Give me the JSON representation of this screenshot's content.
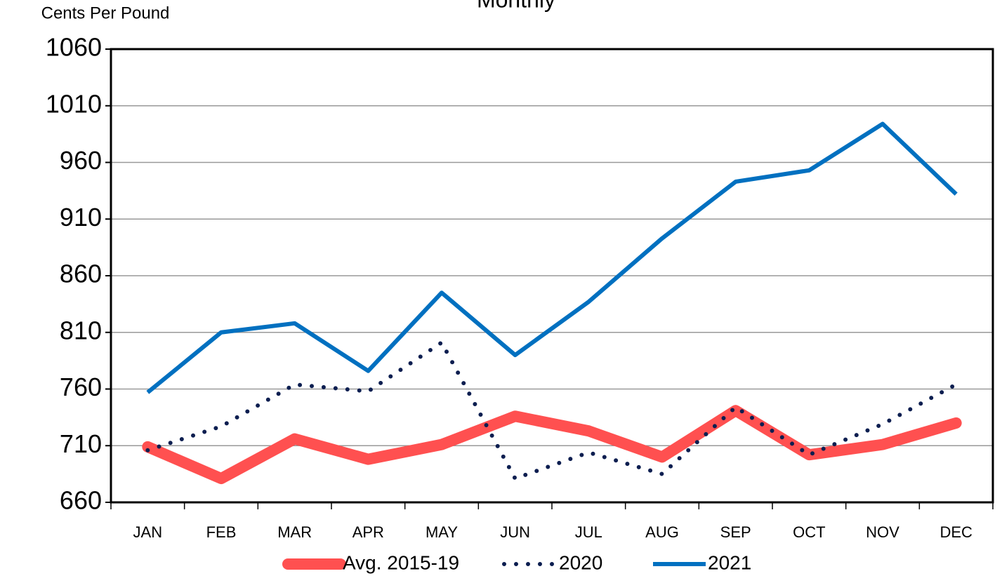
{
  "chart_data": {
    "type": "line",
    "title": "Monthly",
    "y_label": "Cents Per Pound",
    "categories": [
      "JAN",
      "FEB",
      "MAR",
      "APR",
      "MAY",
      "JUN",
      "JUL",
      "AUG",
      "SEP",
      "OCT",
      "NOV",
      "DEC"
    ],
    "series": [
      {
        "name": "Avg. 2015-19",
        "color": "#ff5050",
        "style": "thick",
        "values": [
          709,
          681,
          716,
          698,
          711,
          736,
          723,
          700,
          741,
          702,
          711,
          730
        ]
      },
      {
        "name": "2020",
        "color": "#0c1e50",
        "style": "dotted",
        "values": [
          706,
          727,
          764,
          758,
          801,
          681,
          704,
          685,
          744,
          702,
          729,
          764
        ]
      },
      {
        "name": "2021",
        "color": "#0070c0",
        "style": "solid",
        "values": [
          757,
          810,
          818,
          776,
          845,
          790,
          837,
          893,
          943,
          953,
          994,
          932
        ]
      }
    ],
    "ylim": [
      660,
      1060
    ],
    "yticks": [
      660,
      710,
      760,
      810,
      860,
      910,
      960,
      1010,
      1060
    ],
    "grid": true,
    "legend": "bottom"
  }
}
